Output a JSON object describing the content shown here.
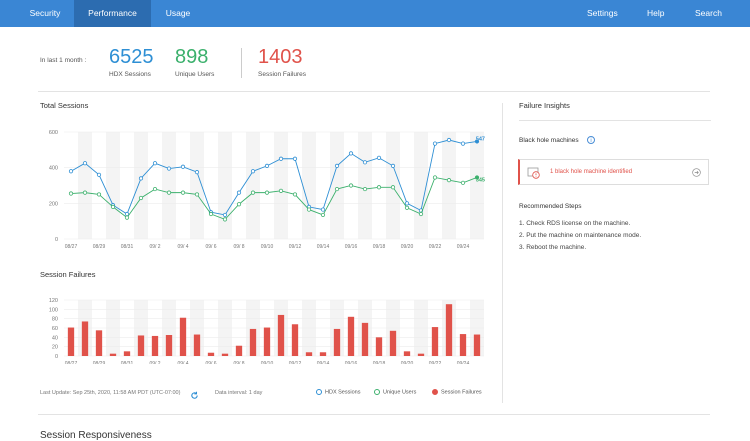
{
  "nav": {
    "tabs": [
      {
        "label": "Security"
      },
      {
        "label": "Performance"
      },
      {
        "label": "Usage"
      }
    ],
    "right": [
      {
        "label": "Settings"
      },
      {
        "label": "Help"
      },
      {
        "label": "Search"
      }
    ]
  },
  "summary": {
    "period_label": "In last 1 month :",
    "hdx_sessions": {
      "value": "6525",
      "label": "HDX Sessions"
    },
    "unique_users": {
      "value": "898",
      "label": "Unique Users"
    },
    "session_failures": {
      "value": "1403",
      "label": "Session Failures"
    }
  },
  "colors": {
    "hdx": "#2e8fd4",
    "users": "#3bb06c",
    "failures": "#e0524a",
    "nav": "#3a86d4"
  },
  "total_sessions_title": "Total Sessions",
  "session_failures_title": "Session Failures",
  "chart_data": [
    {
      "type": "line",
      "title": "Total Sessions",
      "x": [
        "08/27",
        "08/28",
        "08/29",
        "08/30",
        "08/31",
        "09/1",
        "09/2",
        "09/3",
        "09/4",
        "09/5",
        "09/6",
        "09/7",
        "09/8",
        "09/9",
        "09/10",
        "09/11",
        "09/12",
        "09/13",
        "09/14",
        "09/15",
        "09/16",
        "09/17",
        "09/18",
        "09/19",
        "09/20",
        "09/21",
        "09/22",
        "09/23",
        "09/24",
        "09/25"
      ],
      "tick_labels": [
        "08/27",
        "08/29",
        "08/31",
        "09/ 2",
        "09/ 4",
        "09/ 6",
        "09/ 8",
        "09/10",
        "09/12",
        "09/14",
        "09/16",
        "09/18",
        "09/20",
        "09/22",
        "09/24"
      ],
      "ylim": [
        0,
        600
      ],
      "yticks": [
        0,
        200,
        400,
        600
      ],
      "grid": true,
      "series": [
        {
          "name": "HDX Sessions",
          "color": "#2e8fd4",
          "values": [
            380,
            425,
            360,
            190,
            140,
            340,
            425,
            395,
            405,
            375,
            150,
            135,
            260,
            380,
            410,
            450,
            450,
            180,
            165,
            410,
            480,
            430,
            455,
            410,
            200,
            160,
            535,
            555,
            535,
            547
          ]
        },
        {
          "name": "Unique Users",
          "color": "#3bb06c",
          "values": [
            255,
            260,
            250,
            180,
            120,
            230,
            280,
            260,
            260,
            250,
            140,
            110,
            195,
            260,
            260,
            270,
            250,
            165,
            135,
            280,
            300,
            280,
            290,
            290,
            175,
            140,
            345,
            330,
            315,
            345
          ]
        }
      ],
      "annotations": [
        {
          "series": "HDX Sessions",
          "text": "547"
        },
        {
          "series": "Unique Users",
          "text": "345"
        }
      ]
    },
    {
      "type": "bar",
      "title": "Session Failures",
      "x": [
        "08/27",
        "08/28",
        "08/29",
        "08/30",
        "08/31",
        "09/1",
        "09/2",
        "09/3",
        "09/4",
        "09/5",
        "09/6",
        "09/7",
        "09/8",
        "09/9",
        "09/10",
        "09/11",
        "09/12",
        "09/13",
        "09/14",
        "09/15",
        "09/16",
        "09/17",
        "09/18",
        "09/19",
        "09/20",
        "09/21",
        "09/22",
        "09/23",
        "09/24",
        "09/25"
      ],
      "tick_labels": [
        "08/27",
        "08/29",
        "08/31",
        "09/ 2",
        "09/ 4",
        "09/ 6",
        "09/ 8",
        "09/10",
        "09/12",
        "09/14",
        "09/16",
        "09/18",
        "09/20",
        "09/22",
        "09/24"
      ],
      "ylim": [
        0,
        120
      ],
      "yticks": [
        0,
        20,
        40,
        60,
        80,
        100,
        120
      ],
      "grid": true,
      "series": [
        {
          "name": "Session Failures",
          "color": "#e0524a",
          "values": [
            61,
            74,
            55,
            5,
            10,
            44,
            43,
            45,
            82,
            46,
            7,
            5,
            22,
            58,
            61,
            88,
            68,
            8,
            8,
            58,
            84,
            71,
            40,
            54,
            10,
            5,
            62,
            111,
            47,
            46
          ]
        }
      ]
    }
  ],
  "footer": {
    "last_update": "Last Update: Sep 25th, 2020, 11:58 AM PDT (UTC-07:00)",
    "data_interval": "Data interval: 1 day",
    "legend": [
      "HDX Sessions",
      "Unique Users",
      "Session Failures"
    ]
  },
  "failure_insights": {
    "title": "Failure Insights",
    "subtitle": "Black hole machines",
    "alert": "1 black hole machine identified",
    "steps_title": "Recommended Steps",
    "steps": [
      "1.  Check RDS license on the machine.",
      "2.  Put the machine on maintenance mode.",
      "3.  Reboot the machine."
    ]
  },
  "next_section_title": "Session Responsiveness"
}
